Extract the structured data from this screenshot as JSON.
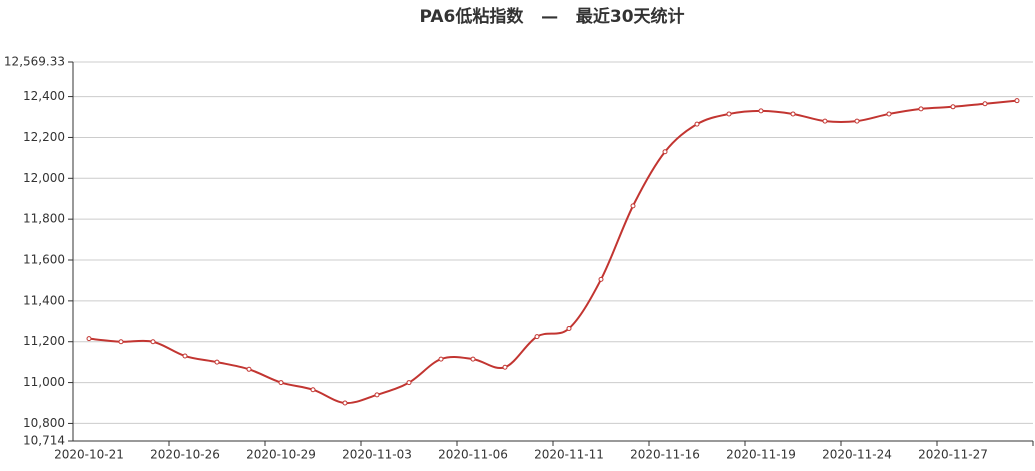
{
  "chart_data": {
    "type": "line",
    "title": "PA6低粘指数   —   最近30天统计",
    "categories": [
      "2020-10-21",
      null,
      null,
      "2020-10-26",
      null,
      null,
      "2020-10-29",
      null,
      null,
      "2020-11-03",
      null,
      null,
      "2020-11-06",
      null,
      null,
      "2020-11-11",
      null,
      null,
      "2020-11-16",
      null,
      null,
      "2020-11-19",
      null,
      null,
      "2020-11-24",
      null,
      null,
      "2020-11-27",
      null,
      null
    ],
    "series": [
      {
        "color": "#c23531",
        "values": [
          11215,
          11200,
          11200,
          11130,
          11100,
          11065,
          11000,
          10965,
          10900,
          10940,
          11000,
          11115,
          11115,
          11075,
          11225,
          11265,
          11505,
          11865,
          12130,
          12265,
          12315,
          12330,
          12315,
          12280,
          12280,
          12315,
          12340,
          12350,
          12365,
          12380
        ]
      }
    ],
    "ylim": [
      10714,
      12569.33
    ],
    "yticks": [
      {
        "value": 10714,
        "label": "10,714"
      },
      {
        "value": 10800,
        "label": "10,800"
      },
      {
        "value": 11000,
        "label": "11,000"
      },
      {
        "value": 11200,
        "label": "11,200"
      },
      {
        "value": 11400,
        "label": "11,400"
      },
      {
        "value": 11600,
        "label": "11,600"
      },
      {
        "value": 11800,
        "label": "11,800"
      },
      {
        "value": 12000,
        "label": "12,000"
      },
      {
        "value": 12200,
        "label": "12,200"
      },
      {
        "value": 12400,
        "label": "12,400"
      },
      {
        "value": 12569.33,
        "label": "12,569.33"
      }
    ],
    "grid": true,
    "smooth": true
  }
}
